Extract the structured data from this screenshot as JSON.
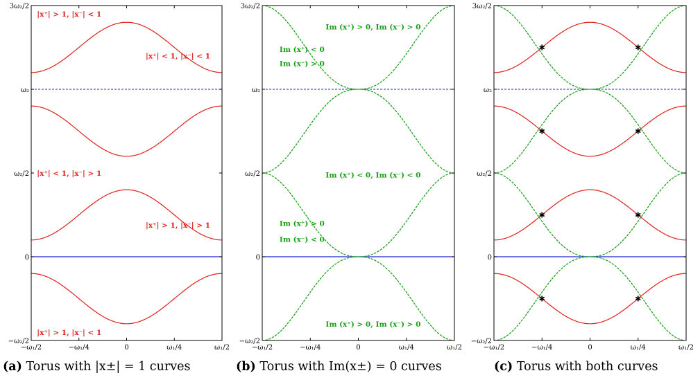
{
  "panels": [
    {
      "id": "a",
      "caption_tag": "(a)",
      "caption_text": "Torus with |x±| = 1 curves",
      "show_red": true,
      "show_green": false,
      "show_stars": false,
      "labels": [
        {
          "text": "|x⁺| > 1,  |x⁻| < 1",
          "u": 0.03,
          "v": 1.45
        },
        {
          "text": "|x⁺| < 1,  |x⁻| < 1",
          "u": 0.6,
          "v": 1.2
        },
        {
          "text": "|x⁺| < 1,  |x⁻| > 1",
          "u": 0.03,
          "v": 0.5
        },
        {
          "text": "|x⁺| > 1,  |x⁻| > 1",
          "u": 0.6,
          "v": 0.19
        },
        {
          "text": "|x⁺| > 1,  |x⁻| < 1",
          "u": 0.03,
          "v": -0.45
        }
      ]
    },
    {
      "id": "b",
      "caption_tag": "(b)",
      "caption_text": "Torus with Im(x±) = 0 curves",
      "show_red": false,
      "show_green": true,
      "show_stars": false,
      "labels": [
        {
          "text": "Im (x⁺) > 0,   Im (x⁻) > 0",
          "u": 0.33,
          "v": 1.375
        },
        {
          "text": "Im (x⁺) < 0",
          "u": 0.09,
          "v": 1.24
        },
        {
          "text": "Im (x⁻) > 0",
          "u": 0.09,
          "v": 1.155
        },
        {
          "text": "Im (x⁺) < 0,   Im (x⁻) < 0",
          "u": 0.33,
          "v": 0.49
        },
        {
          "text": "Im (x⁺) > 0",
          "u": 0.09,
          "v": 0.2
        },
        {
          "text": "Im (x⁻) < 0",
          "u": 0.09,
          "v": 0.105
        },
        {
          "text": "Im (x⁺) > 0,   Im (x⁻) > 0",
          "u": 0.33,
          "v": -0.4
        }
      ]
    },
    {
      "id": "c",
      "caption_tag": "(c)",
      "caption_text": "Torus with both curves",
      "show_red": true,
      "show_green": true,
      "show_stars": true,
      "labels": []
    }
  ],
  "axis": {
    "y_ticks": [
      {
        "label": "3ω₂/2",
        "value": 1.5
      },
      {
        "label": "ω₂",
        "value": 1.0
      },
      {
        "label": "ω₂/2",
        "value": 0.5
      },
      {
        "label": "0",
        "value": 0.0
      },
      {
        "label": "−ω₂/2",
        "value": -0.5
      }
    ],
    "x_ticks": [
      {
        "label": "−ω₁/2",
        "value": -0.5
      },
      {
        "label": "−ω₁/4",
        "value": -0.25
      },
      {
        "label": "0",
        "value": 0.0
      },
      {
        "label": "ω₁/4",
        "value": 0.25
      },
      {
        "label": "ω₁/2",
        "value": 0.5
      }
    ]
  },
  "colors": {
    "red": "#e0201c",
    "green": "#1a9e1a",
    "blue": "#1f24d8"
  }
}
